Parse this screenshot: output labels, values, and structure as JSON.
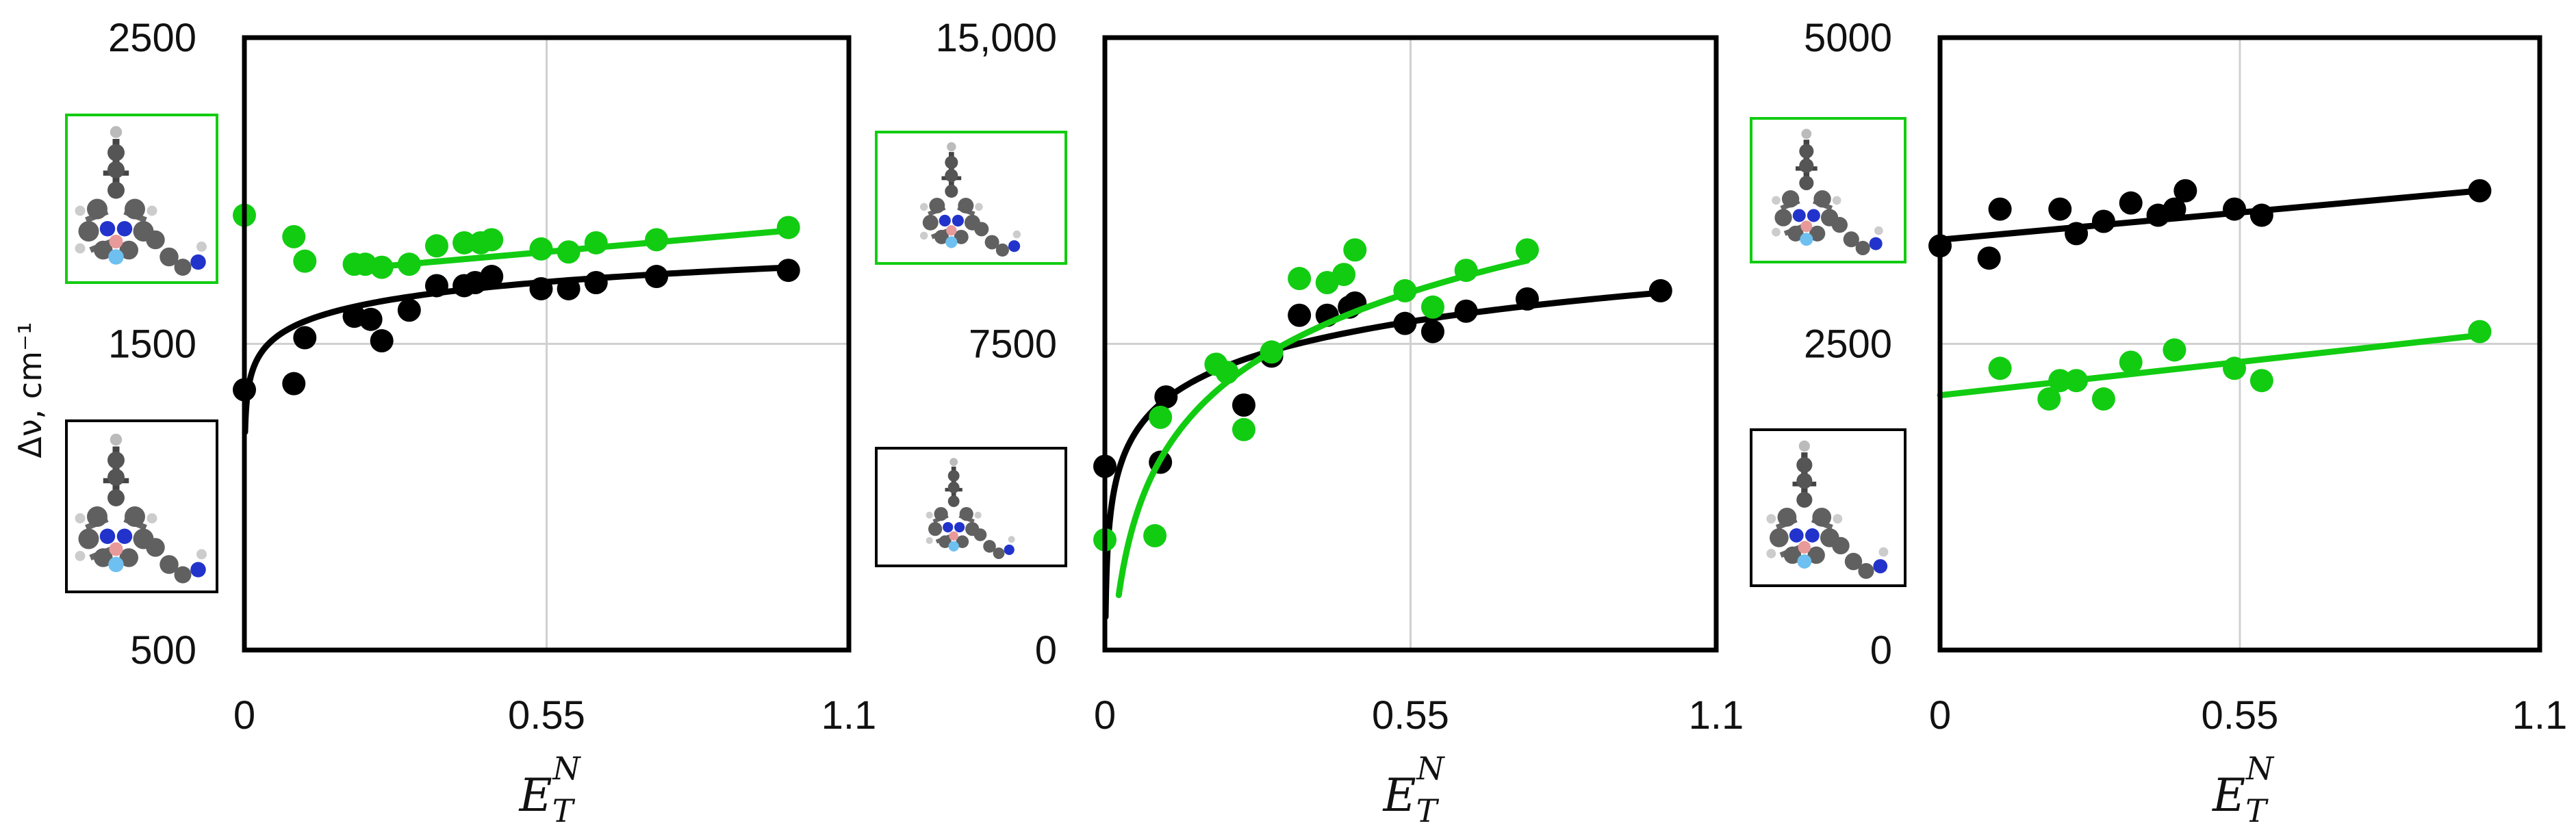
{
  "colors": {
    "black": "#000000",
    "green": "#12cc12",
    "grid": "#d0d0d0"
  },
  "y_label": "Δν, cm⁻¹",
  "x_label": {
    "main": "E",
    "sub": "T",
    "sup": "N"
  },
  "chart_data": [
    {
      "type": "scatter",
      "xlim": [
        0,
        1.1
      ],
      "ylim": [
        500,
        2500
      ],
      "xticks": [
        "0",
        "0.55",
        "1.1"
      ],
      "yticks": [
        "2500",
        "1500",
        "500"
      ],
      "molecule_icons": [
        "molecule-green-framed",
        "molecule-black-framed"
      ],
      "series": [
        {
          "name": "black",
          "color": "#000000",
          "x": [
            0.0,
            0.09,
            0.11,
            0.2,
            0.23,
            0.25,
            0.3,
            0.35,
            0.4,
            0.42,
            0.45,
            0.54,
            0.59,
            0.64,
            0.75,
            0.99
          ],
          "y": [
            1350,
            1370,
            1520,
            1590,
            1580,
            1510,
            1610,
            1690,
            1690,
            1700,
            1720,
            1680,
            1680,
            1700,
            1720,
            1740
          ],
          "fit": {
            "kind": "log",
            "a": 1750,
            "b": 80
          }
        },
        {
          "name": "green",
          "color": "#12cc12",
          "x": [
            0.0,
            0.09,
            0.11,
            0.2,
            0.22,
            0.25,
            0.3,
            0.35,
            0.4,
            0.43,
            0.45,
            0.54,
            0.59,
            0.64,
            0.75,
            0.99
          ],
          "y": [
            1920,
            1850,
            1770,
            1760,
            1760,
            1750,
            1760,
            1820,
            1830,
            1830,
            1840,
            1810,
            1800,
            1830,
            1840,
            1880
          ],
          "fit": {
            "kind": "linear",
            "x0": 0.2,
            "x1": 0.99,
            "y0": 1745,
            "y1": 1870
          }
        }
      ]
    },
    {
      "type": "scatter",
      "xlim": [
        0,
        1.1
      ],
      "ylim": [
        0,
        15000
      ],
      "xticks": [
        "0",
        "0.55",
        "1.1"
      ],
      "yticks": [
        "15,000",
        "7500",
        "0"
      ],
      "molecule_icons": [
        "molecule-green-framed",
        "molecule-black-framed"
      ],
      "series": [
        {
          "name": "black",
          "color": "#000000",
          "x": [
            0.0,
            0.1,
            0.11,
            0.25,
            0.3,
            0.35,
            0.4,
            0.44,
            0.45,
            0.54,
            0.59,
            0.65,
            0.76,
            1.0
          ],
          "y": [
            4500,
            4600,
            6200,
            6000,
            7200,
            8200,
            8200,
            8400,
            8500,
            8000,
            7800,
            8300,
            8600,
            8800
          ],
          "fit": {
            "kind": "log",
            "a": 8750,
            "b": 1180
          }
        },
        {
          "name": "green",
          "color": "#12cc12",
          "x": [
            0.0,
            0.09,
            0.1,
            0.2,
            0.22,
            0.25,
            0.3,
            0.35,
            0.4,
            0.43,
            0.45,
            0.54,
            0.59,
            0.65,
            0.76
          ],
          "y": [
            2700,
            2800,
            5700,
            7000,
            6800,
            5400,
            7300,
            9100,
            9000,
            9200,
            9800,
            8800,
            8400,
            9300,
            9800
          ],
          "fit": {
            "kind": "log",
            "x0": 0.025,
            "a": 10200,
            "b": 2400
          }
        }
      ]
    },
    {
      "type": "scatter",
      "xlim": [
        0,
        1.1
      ],
      "ylim": [
        0,
        5000
      ],
      "xticks": [
        "0",
        "0.55",
        "1.1"
      ],
      "yticks": [
        "5000",
        "2500",
        "0"
      ],
      "molecule_icons": [
        "molecule-green-framed",
        "molecule-black-framed"
      ],
      "series": [
        {
          "name": "black",
          "color": "#000000",
          "x": [
            0.0,
            0.09,
            0.11,
            0.22,
            0.25,
            0.3,
            0.35,
            0.4,
            0.43,
            0.45,
            0.54,
            0.59,
            0.99
          ],
          "y": [
            3300,
            3200,
            3600,
            3600,
            3400,
            3500,
            3650,
            3550,
            3600,
            3750,
            3600,
            3550,
            3750
          ],
          "fit": {
            "kind": "linear",
            "x0": 0.0,
            "x1": 0.99,
            "y0": 3350,
            "y1": 3750
          }
        },
        {
          "name": "green",
          "color": "#12cc12",
          "x": [
            0.11,
            0.2,
            0.22,
            0.25,
            0.3,
            0.35,
            0.43,
            0.54,
            0.59,
            0.99
          ],
          "y": [
            2300,
            2050,
            2200,
            2200,
            2050,
            2350,
            2450,
            2300,
            2200,
            2600
          ],
          "fit": {
            "kind": "linear",
            "x0": 0.0,
            "x1": 0.99,
            "y0": 2080,
            "y1": 2570
          }
        }
      ]
    }
  ]
}
